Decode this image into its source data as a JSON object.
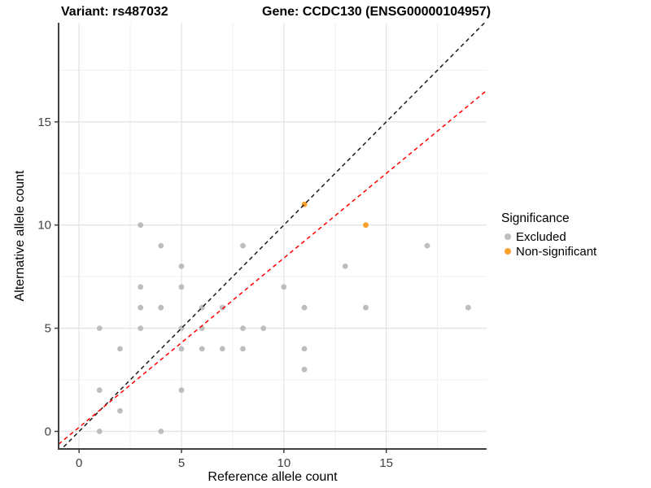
{
  "titles": {
    "variant": "Variant: rs487032",
    "gene": "Gene: CCDC130 (ENSG00000104957)"
  },
  "chart_data": {
    "type": "scatter",
    "xlabel": "Reference allele count",
    "ylabel": "Alternative allele count",
    "xlim": [
      -1,
      19.9
    ],
    "ylim": [
      -0.85,
      19.8
    ],
    "x_ticks": [
      0,
      5,
      10,
      15
    ],
    "y_ticks": [
      0,
      5,
      10,
      15
    ],
    "x_grid_major": [
      0,
      5,
      10,
      15
    ],
    "x_grid_minor": [
      2.5,
      7.5,
      12.5,
      17.5
    ],
    "y_grid_major": [
      0,
      5,
      10,
      15
    ],
    "y_grid_minor": [
      2.5,
      7.5,
      12.5,
      17.5
    ],
    "grid": true,
    "legend_position": "right",
    "series": [
      {
        "name": "Excluded",
        "color": "#bdbdbd",
        "points": [
          [
            1,
            0
          ],
          [
            1,
            2
          ],
          [
            1,
            5
          ],
          [
            2,
            1
          ],
          [
            2,
            4
          ],
          [
            3,
            5
          ],
          [
            3,
            6
          ],
          [
            3,
            7
          ],
          [
            3,
            10
          ],
          [
            4,
            0
          ],
          [
            4,
            6
          ],
          [
            4,
            9
          ],
          [
            5,
            2
          ],
          [
            5,
            4
          ],
          [
            5,
            5
          ],
          [
            5,
            7
          ],
          [
            5,
            8
          ],
          [
            6,
            4
          ],
          [
            6,
            5
          ],
          [
            6,
            6
          ],
          [
            7,
            4
          ],
          [
            7,
            6
          ],
          [
            8,
            4
          ],
          [
            8,
            5
          ],
          [
            8,
            9
          ],
          [
            9,
            5
          ],
          [
            10,
            7
          ],
          [
            11,
            3
          ],
          [
            11,
            4
          ],
          [
            11,
            6
          ],
          [
            13,
            8
          ],
          [
            14,
            6
          ],
          [
            17,
            9
          ],
          [
            19,
            6
          ]
        ]
      },
      {
        "name": "Non-significant",
        "color": "#f8a12b",
        "points": [
          [
            11,
            11
          ],
          [
            14,
            10
          ]
        ]
      }
    ],
    "lines": [
      {
        "name": "identity-line",
        "slope": 1,
        "intercept": 0,
        "color": "#1a1a1a",
        "dash": "5,4"
      },
      {
        "name": "fit-line",
        "slope": 0.82,
        "intercept": 0.2,
        "color": "#ff0000",
        "dash": "5,4"
      }
    ],
    "legend": {
      "title": "Significance",
      "items": [
        {
          "label": "Excluded",
          "color": "#bdbdbd"
        },
        {
          "label": "Non-significant",
          "color": "#f8a12b"
        }
      ]
    },
    "colors": {
      "axis": "#404040",
      "tick_label": "#404040",
      "grid_major": "#e4e4e4",
      "grid_minor": "#efefef",
      "background": "#ffffff"
    }
  }
}
